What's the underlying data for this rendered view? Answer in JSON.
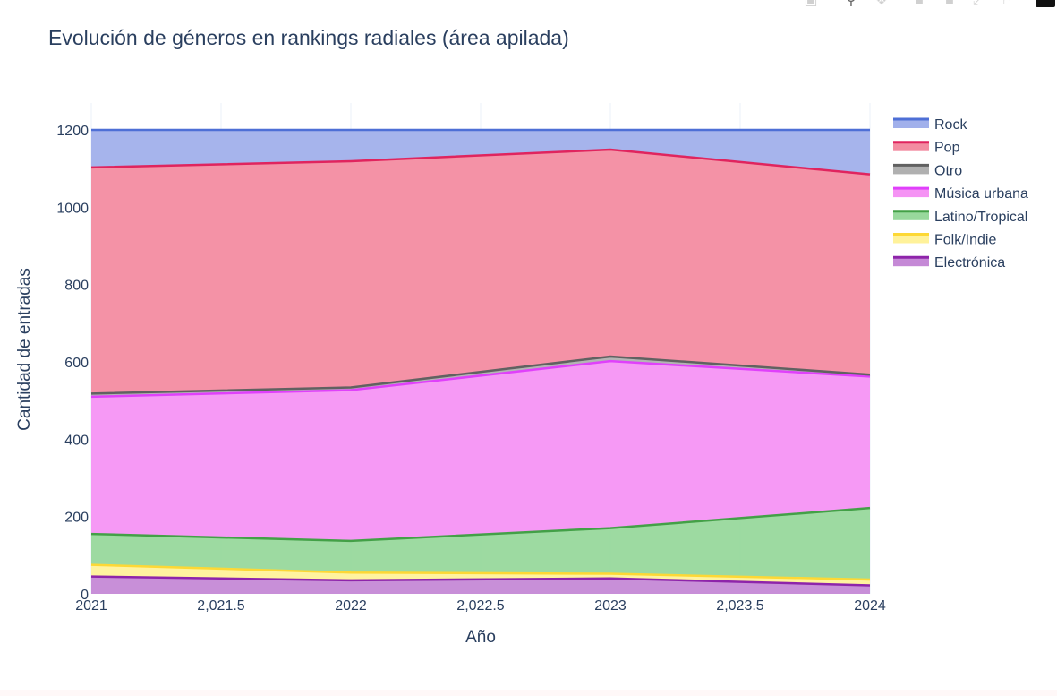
{
  "chart_data": {
    "type": "area",
    "stacked": true,
    "title": "Evolución de géneros en rankings radiales (área apilada)",
    "xlabel": "Año",
    "ylabel": "Cantidad de entradas",
    "x": [
      2021,
      2022,
      2023,
      2024
    ],
    "xlim": [
      2021,
      2024
    ],
    "xticks": [
      2021,
      2021.5,
      2022,
      2022.5,
      2023,
      2023.5,
      2024
    ],
    "xtick_labels": [
      "2021",
      "2,021.5",
      "2022",
      "2,022.5",
      "2023",
      "2,023.5",
      "2024"
    ],
    "ylim": [
      0,
      1200
    ],
    "yticks": [
      0,
      200,
      400,
      600,
      800,
      1000,
      1200
    ],
    "grid": true,
    "legend_position": "top-right",
    "series": [
      {
        "name": "Electrónica",
        "values": [
          45,
          35,
          40,
          22
        ],
        "line_color": "#8e24aa",
        "fill_color": "#c589d6"
      },
      {
        "name": "Folk/Indie",
        "values": [
          30,
          20,
          12,
          15
        ],
        "line_color": "#fdd835",
        "fill_color": "#fff29a"
      },
      {
        "name": "Latino/Tropical",
        "values": [
          80,
          82,
          118,
          185
        ],
        "line_color": "#43a047",
        "fill_color": "#98d89c"
      },
      {
        "name": "Música urbana",
        "values": [
          355,
          390,
          432,
          340
        ],
        "line_color": "#e040fb",
        "fill_color": "#f593f4"
      },
      {
        "name": "Otro",
        "values": [
          8,
          7,
          12,
          5
        ],
        "line_color": "#616161",
        "fill_color": "#b0b0b0"
      },
      {
        "name": "Pop",
        "values": [
          585,
          585,
          535,
          518
        ],
        "line_color": "#e0245e",
        "fill_color": "#f38ca1"
      },
      {
        "name": "Rock",
        "values": [
          97,
          81,
          51,
          115
        ],
        "line_color": "#4e6fd6",
        "fill_color": "#a1b0eb"
      }
    ]
  },
  "modebar": {
    "buttons": [
      "camera-icon",
      "zoom-icon",
      "pan-icon",
      "zoom-in-icon",
      "zoom-out-icon",
      "autoscale-icon",
      "home-icon",
      "plotly-logo-icon"
    ]
  }
}
